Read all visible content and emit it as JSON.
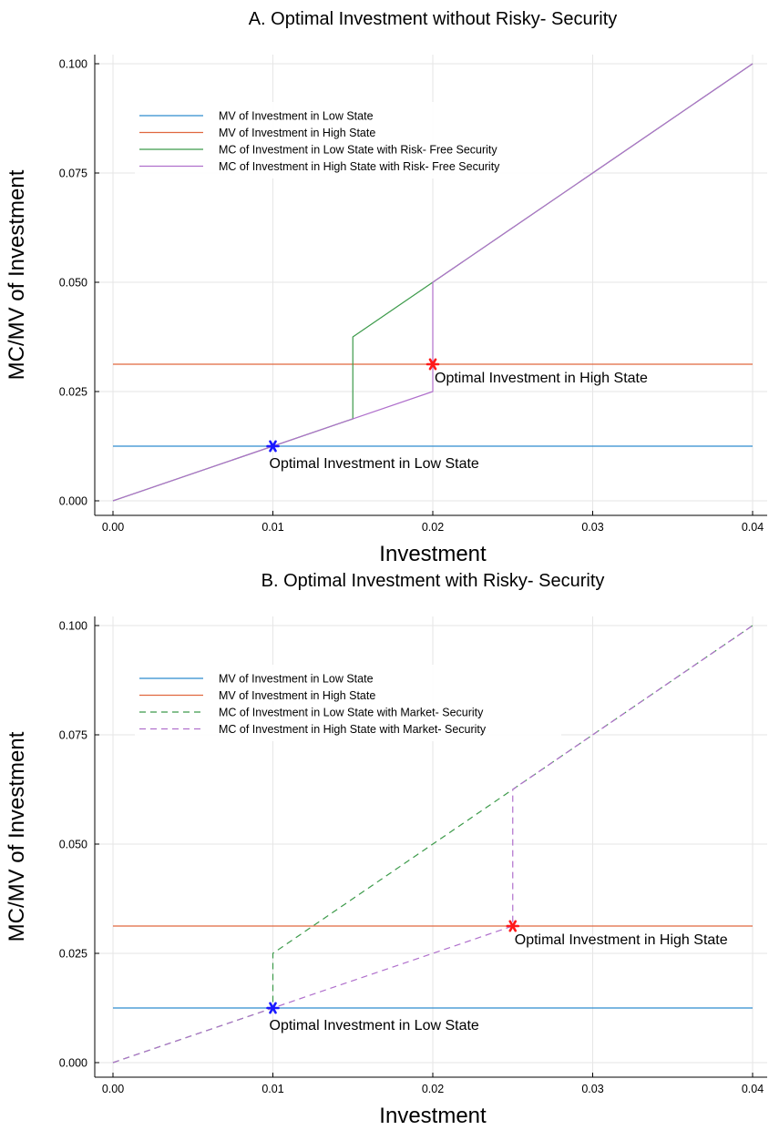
{
  "chart_data": [
    {
      "type": "line",
      "title": "A. Optimal Investment without Risky- Security",
      "xlabel": "Investment",
      "ylabel": "MC/MV of Investment",
      "xlim": [
        0.0,
        0.04
      ],
      "ylim": [
        0.0,
        0.1
      ],
      "xticks": [
        0.0,
        0.01,
        0.02,
        0.03,
        0.04
      ],
      "xtick_labels": [
        "0.00",
        "0.01",
        "0.02",
        "0.03",
        "0.04"
      ],
      "yticks": [
        0.0,
        0.025,
        0.05,
        0.075,
        0.1
      ],
      "ytick_labels": [
        "0.000",
        "0.025",
        "0.050",
        "0.075",
        "0.100"
      ],
      "grid": true,
      "legend_position": "top-left",
      "series": [
        {
          "name": "MV of Investment in Low State",
          "color": "#2f8ccf",
          "style": "solid",
          "x": [
            0.0,
            0.04
          ],
          "y": [
            0.0125,
            0.0125
          ]
        },
        {
          "name": "MV of Investment in High State",
          "color": "#e0673f",
          "style": "solid",
          "x": [
            0.0,
            0.04
          ],
          "y": [
            0.03125,
            0.03125
          ]
        },
        {
          "name": "MC of Investment in Low State with Risk- Free Security",
          "color": "#3c9a4a",
          "style": "solid",
          "x": [
            0.0,
            0.015,
            0.015,
            0.02,
            0.04
          ],
          "y": [
            0.0,
            0.01875,
            0.0375,
            0.05,
            0.1
          ]
        },
        {
          "name": "MC of Investment in High State with Risk- Free Security",
          "color": "#b070cc",
          "style": "solid",
          "x": [
            0.0,
            0.02,
            0.02,
            0.04
          ],
          "y": [
            0.0,
            0.025,
            0.05,
            0.1
          ]
        }
      ],
      "markers": [
        {
          "x": 0.01,
          "y": 0.0125,
          "color": "#1a1aff",
          "label": "Optimal Investment in Low State"
        },
        {
          "x": 0.02,
          "y": 0.03125,
          "color": "#ff1a1a",
          "label": "Optimal Investment in High State"
        }
      ]
    },
    {
      "type": "line",
      "title": "B. Optimal Investment with Risky- Security",
      "xlabel": "Investment",
      "ylabel": "MC/MV of Investment",
      "xlim": [
        0.0,
        0.04
      ],
      "ylim": [
        0.0,
        0.1
      ],
      "xticks": [
        0.0,
        0.01,
        0.02,
        0.03,
        0.04
      ],
      "xtick_labels": [
        "0.00",
        "0.01",
        "0.02",
        "0.03",
        "0.04"
      ],
      "yticks": [
        0.0,
        0.025,
        0.05,
        0.075,
        0.1
      ],
      "ytick_labels": [
        "0.000",
        "0.025",
        "0.050",
        "0.075",
        "0.100"
      ],
      "grid": true,
      "legend_position": "top-left",
      "series": [
        {
          "name": "MV of Investment in Low State",
          "color": "#2f8ccf",
          "style": "solid",
          "x": [
            0.0,
            0.04
          ],
          "y": [
            0.0125,
            0.0125
          ]
        },
        {
          "name": "MV of Investment in High State",
          "color": "#e0673f",
          "style": "solid",
          "x": [
            0.0,
            0.04
          ],
          "y": [
            0.03125,
            0.03125
          ]
        },
        {
          "name": "MC of Investment in Low State with Market- Security",
          "color": "#3c9a4a",
          "style": "dashed",
          "x": [
            0.0,
            0.01,
            0.01,
            0.04
          ],
          "y": [
            0.0,
            0.0125,
            0.025,
            0.1
          ]
        },
        {
          "name": "MC of Investment in High State with Market- Security",
          "color": "#b070cc",
          "style": "dashed",
          "x": [
            0.0,
            0.025,
            0.025,
            0.04
          ],
          "y": [
            0.0,
            0.03125,
            0.0625,
            0.1
          ]
        }
      ],
      "markers": [
        {
          "x": 0.01,
          "y": 0.0125,
          "color": "#1a1aff",
          "label": "Optimal Investment in Low State"
        },
        {
          "x": 0.025,
          "y": 0.03125,
          "color": "#ff1a1a",
          "label": "Optimal Investment in High State"
        }
      ]
    }
  ]
}
